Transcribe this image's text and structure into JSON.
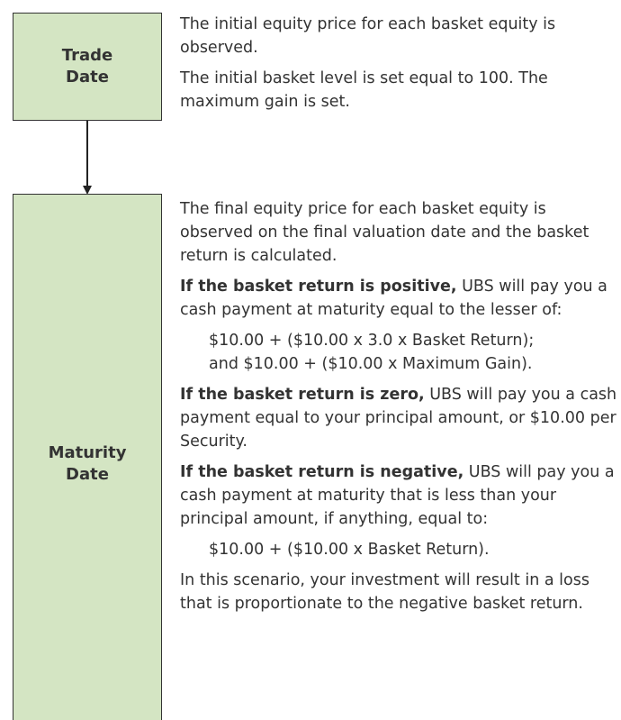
{
  "steps": [
    {
      "label": "Trade Date",
      "paragraphs": [
        {
          "text": "The initial equity price for each basket equity is observed."
        },
        {
          "text": "The initial basket level is set equal to 100. The maximum gain is set."
        }
      ]
    },
    {
      "label": "Maturity Date",
      "paragraphs": [
        {
          "text": "The final equity price for each basket equity is observed on the final valuation date and the basket return is calculated."
        },
        {
          "bold": "If the basket return is positive,",
          "text": " UBS will pay you a cash payment at maturity equal to the lesser of:"
        },
        {
          "formula": [
            "$10.00 + ($10.00 x 3.0 x Basket Return);",
            "and $10.00 + ($10.00 x Maximum Gain)."
          ]
        },
        {
          "bold": "If the basket return is zero,",
          "text": " UBS will pay you a cash payment equal to your principal amount, or $10.00 per Security."
        },
        {
          "bold": "If the basket return is negative,",
          "text": " UBS will pay you a cash payment at maturity that is less than your principal amount, if anything, equal to:"
        },
        {
          "formula": [
            "$10.00 + ($10.00 x Basket Return)."
          ]
        },
        {
          "text": "In this scenario, your investment will result in a loss that is proportionate to the negative basket return."
        }
      ]
    }
  ]
}
